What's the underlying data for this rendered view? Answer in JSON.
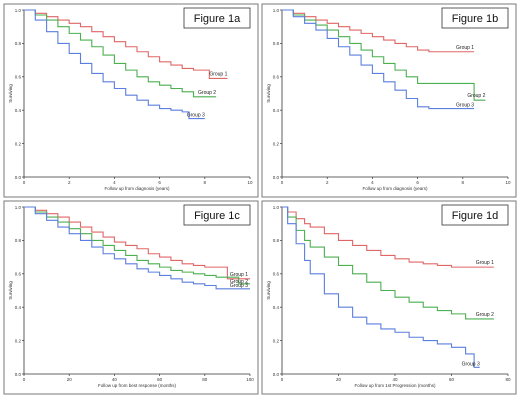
{
  "chart_data": [
    {
      "type": "line",
      "panel_label": "Figure 1a",
      "xlabel": "Follow up from diagnosis (years)",
      "ylabel": "Surviving",
      "xlim": [
        0,
        10
      ],
      "ylim": [
        0,
        1
      ],
      "x_ticks": [
        0,
        2,
        4,
        6,
        8,
        10
      ],
      "y_ticks": [
        0.0,
        0.2,
        0.4,
        0.6,
        0.8,
        1.0
      ],
      "grid": false,
      "series": [
        {
          "name": "Group 1",
          "color": "#e06666",
          "x": [
            0,
            0.5,
            1,
            1.5,
            2,
            2.5,
            3,
            3.5,
            4,
            4.5,
            5,
            5.5,
            6,
            6.5,
            7,
            7.5,
            8,
            8.2,
            8.6,
            9
          ],
          "y": [
            1.0,
            0.98,
            0.96,
            0.94,
            0.92,
            0.9,
            0.87,
            0.84,
            0.81,
            0.78,
            0.75,
            0.72,
            0.69,
            0.67,
            0.65,
            0.64,
            0.64,
            0.59,
            0.59,
            0.59
          ]
        },
        {
          "name": "Group 2",
          "color": "#4caf50",
          "x": [
            0,
            0.5,
            1,
            1.5,
            2,
            2.5,
            3,
            3.5,
            4,
            4.5,
            5,
            5.5,
            6,
            6.5,
            7,
            7.5,
            8,
            8.5
          ],
          "y": [
            1.0,
            0.97,
            0.94,
            0.9,
            0.86,
            0.82,
            0.78,
            0.73,
            0.68,
            0.64,
            0.6,
            0.57,
            0.55,
            0.53,
            0.51,
            0.48,
            0.48,
            0.48
          ]
        },
        {
          "name": "Group 3",
          "color": "#5b7fde",
          "x": [
            0,
            0.5,
            1,
            1.5,
            2,
            2.5,
            3,
            3.5,
            4,
            4.5,
            5,
            5.5,
            6,
            6.5,
            7,
            7.3,
            7.5,
            8
          ],
          "y": [
            1.0,
            0.94,
            0.87,
            0.8,
            0.74,
            0.68,
            0.62,
            0.57,
            0.53,
            0.49,
            0.46,
            0.43,
            0.41,
            0.4,
            0.39,
            0.35,
            0.35,
            0.35
          ]
        }
      ]
    },
    {
      "type": "line",
      "panel_label": "Figure 1b",
      "xlabel": "Follow up from diagnosis (years)",
      "ylabel": "Surviving",
      "xlim": [
        0,
        10
      ],
      "ylim": [
        0,
        1
      ],
      "x_ticks": [
        0,
        2,
        4,
        6,
        8,
        10
      ],
      "y_ticks": [
        0.0,
        0.2,
        0.4,
        0.6,
        0.8,
        1.0
      ],
      "grid": false,
      "series": [
        {
          "name": "Group 1",
          "color": "#e06666",
          "x": [
            0,
            0.5,
            1,
            1.5,
            2,
            2.5,
            3,
            3.5,
            4,
            4.5,
            5,
            5.5,
            6,
            6.5,
            7,
            7.5,
            8,
            8.5
          ],
          "y": [
            1.0,
            0.98,
            0.96,
            0.94,
            0.92,
            0.9,
            0.88,
            0.86,
            0.84,
            0.82,
            0.8,
            0.78,
            0.76,
            0.75,
            0.75,
            0.75,
            0.75,
            0.75
          ]
        },
        {
          "name": "Group 2",
          "color": "#4caf50",
          "x": [
            0,
            0.5,
            1,
            1.5,
            2,
            2.5,
            3,
            3.5,
            4,
            4.5,
            5,
            5.5,
            6,
            6.5,
            7,
            7.5,
            8,
            8.5,
            9
          ],
          "y": [
            1.0,
            0.97,
            0.94,
            0.91,
            0.88,
            0.84,
            0.8,
            0.76,
            0.72,
            0.68,
            0.64,
            0.6,
            0.56,
            0.56,
            0.56,
            0.56,
            0.56,
            0.46,
            0.46
          ]
        },
        {
          "name": "Group 3",
          "color": "#5b7fde",
          "x": [
            0,
            0.5,
            1,
            1.5,
            2,
            2.5,
            3,
            3.5,
            4,
            4.5,
            5,
            5.5,
            6,
            6.5,
            7,
            7.5,
            8,
            8.5
          ],
          "y": [
            1.0,
            0.96,
            0.92,
            0.88,
            0.83,
            0.78,
            0.73,
            0.67,
            0.62,
            0.57,
            0.52,
            0.47,
            0.42,
            0.41,
            0.41,
            0.41,
            0.41,
            0.41
          ]
        }
      ]
    },
    {
      "type": "line",
      "panel_label": "Figure 1c",
      "xlabel": "Follow up from best response (months)",
      "ylabel": "Surviving",
      "xlim": [
        0,
        100
      ],
      "ylim": [
        0,
        1
      ],
      "x_ticks": [
        0,
        20,
        40,
        60,
        80,
        100
      ],
      "y_ticks": [
        0.0,
        0.2,
        0.4,
        0.6,
        0.8,
        1.0
      ],
      "grid": false,
      "series": [
        {
          "name": "Group 1",
          "color": "#e06666",
          "x": [
            0,
            5,
            10,
            15,
            20,
            25,
            30,
            35,
            40,
            45,
            50,
            55,
            60,
            65,
            70,
            75,
            80,
            85,
            90,
            95,
            100
          ],
          "y": [
            1.0,
            0.98,
            0.96,
            0.94,
            0.91,
            0.88,
            0.85,
            0.82,
            0.79,
            0.77,
            0.75,
            0.72,
            0.7,
            0.68,
            0.66,
            0.65,
            0.64,
            0.64,
            0.57,
            0.57,
            0.57
          ]
        },
        {
          "name": "Group 2",
          "color": "#4caf50",
          "x": [
            0,
            5,
            10,
            15,
            20,
            25,
            30,
            35,
            40,
            45,
            50,
            55,
            60,
            65,
            70,
            75,
            80,
            85,
            90,
            95,
            100
          ],
          "y": [
            1.0,
            0.97,
            0.94,
            0.91,
            0.87,
            0.84,
            0.8,
            0.77,
            0.74,
            0.71,
            0.68,
            0.66,
            0.64,
            0.62,
            0.61,
            0.6,
            0.59,
            0.58,
            0.58,
            0.54,
            0.54
          ]
        },
        {
          "name": "Group 3",
          "color": "#5b7fde",
          "x": [
            0,
            5,
            10,
            15,
            20,
            25,
            30,
            35,
            40,
            45,
            50,
            55,
            60,
            65,
            70,
            75,
            80,
            85,
            90,
            95,
            100
          ],
          "y": [
            1.0,
            0.96,
            0.92,
            0.88,
            0.84,
            0.8,
            0.76,
            0.72,
            0.69,
            0.66,
            0.63,
            0.61,
            0.59,
            0.57,
            0.55,
            0.54,
            0.53,
            0.51,
            0.51,
            0.51,
            0.51
          ]
        }
      ]
    },
    {
      "type": "line",
      "panel_label": "Figure 1d",
      "xlabel": "Follow up from 1st Progression (months)",
      "ylabel": "Surviving",
      "xlim": [
        0,
        80
      ],
      "ylim": [
        0,
        1
      ],
      "x_ticks": [
        0,
        20,
        40,
        60,
        80
      ],
      "y_ticks": [
        0.0,
        0.2,
        0.4,
        0.6,
        0.8,
        1.0
      ],
      "grid": false,
      "series": [
        {
          "name": "Group 1",
          "color": "#e06666",
          "x": [
            0,
            2,
            5,
            8,
            10,
            15,
            20,
            25,
            30,
            35,
            40,
            45,
            50,
            55,
            60,
            65,
            70,
            75
          ],
          "y": [
            1.0,
            0.97,
            0.93,
            0.9,
            0.88,
            0.84,
            0.8,
            0.77,
            0.74,
            0.71,
            0.69,
            0.67,
            0.66,
            0.65,
            0.64,
            0.64,
            0.64,
            0.64
          ]
        },
        {
          "name": "Group 2",
          "color": "#4caf50",
          "x": [
            0,
            2,
            5,
            8,
            10,
            15,
            20,
            25,
            30,
            35,
            40,
            45,
            50,
            55,
            60,
            65,
            70,
            75
          ],
          "y": [
            1.0,
            0.94,
            0.86,
            0.8,
            0.76,
            0.7,
            0.65,
            0.6,
            0.55,
            0.5,
            0.46,
            0.43,
            0.4,
            0.38,
            0.36,
            0.33,
            0.33,
            0.33
          ]
        },
        {
          "name": "Group 3",
          "color": "#5b7fde",
          "x": [
            0,
            2,
            5,
            8,
            10,
            15,
            20,
            25,
            30,
            35,
            40,
            45,
            50,
            55,
            60,
            65,
            68,
            70
          ],
          "y": [
            1.0,
            0.9,
            0.78,
            0.68,
            0.6,
            0.48,
            0.4,
            0.34,
            0.3,
            0.27,
            0.25,
            0.22,
            0.2,
            0.18,
            0.16,
            0.12,
            0.04,
            0.04
          ]
        }
      ]
    }
  ]
}
